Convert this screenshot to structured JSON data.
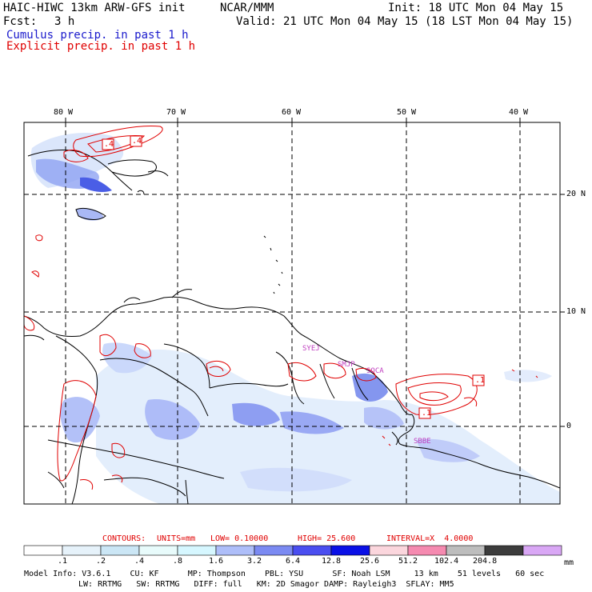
{
  "header": {
    "model_title": "HAIC-HIWC 13km ARW-GFS init",
    "org": "NCAR/MMM",
    "fcst_label": "Fcst:",
    "fcst_value": "3 h",
    "init": "Init: 18 UTC Mon 04 May 15",
    "valid": "Valid: 21 UTC Mon 04 May 15 (18 LST Mon 04 May 15)",
    "line_cumulus": "Cumulus precip. in past 1 h",
    "line_explicit": "Explicit precip. in past 1 h"
  },
  "map": {
    "lon_labels": [
      "80 W",
      "70 W",
      "60 W",
      "50 W",
      "40 W"
    ],
    "lat_labels": [
      "20 N",
      "10 N",
      "0"
    ],
    "contour_labels": [
      ".4",
      ".4",
      ".1",
      ".1"
    ],
    "stations": [
      "SYEJ",
      "SMJP",
      "SOCA",
      "SBBE"
    ],
    "colors": {
      "land_outline": "#000000",
      "cumulus": "#5a6ee6",
      "explicit": "#e00000",
      "station": "#c040c0"
    }
  },
  "contours": {
    "label": "CONTOURS:",
    "units": "UNITS=mm",
    "low": "LOW= 0.10000",
    "high": "HIGH= 25.600",
    "interval": "INTERVAL=X  4.0000"
  },
  "legend": {
    "unit": "mm",
    "ticks": [
      ".1",
      ".2",
      ".4",
      ".8",
      "1.6",
      "3.2",
      "6.4",
      "12.8",
      "25.6",
      "51.2",
      "102.4",
      "204.8"
    ],
    "colors": [
      "#ffffff",
      "#e6f2fa",
      "#cbe6f5",
      "#e8fbfb",
      "#d6f7ff",
      "#aebef9",
      "#7b8af2",
      "#4a4ef0",
      "#0a10e6",
      "#fbd6dd",
      "#f58ab0",
      "#bdbdbd",
      "#3c3c3c",
      "#d9a7f5"
    ]
  },
  "footer": {
    "line1": "Model Info: V3.6.1    CU: KF      MP: Thompson    PBL: YSU      SF: Noah LSM     13 km    51 levels   60 sec",
    "line2": "LW: RRTMG   SW: RRTMG   DIFF: full   KM: 2D Smagor DAMP: Rayleigh3  SFLAY: MM5"
  }
}
